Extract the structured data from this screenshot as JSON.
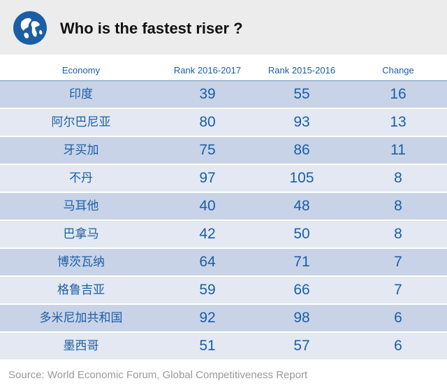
{
  "title": "Who is the fastest riser ?",
  "icon": "globe-icon",
  "colors": {
    "header_bg": "#ececec",
    "accent": "#1b5ea6",
    "row_dark": "#c9d3e7",
    "row_light": "#e3e8f2",
    "source_text": "#9a9a9a"
  },
  "source": "Source: World Economic Forum, Global Competitiveness Report",
  "chart_data": {
    "type": "table",
    "title": "Who is the fastest riser ?",
    "columns": [
      "Economy",
      "Rank 2016-2017",
      "Rank 2015-2016",
      "Change"
    ],
    "rows": [
      [
        "印度",
        "39",
        "55",
        "16"
      ],
      [
        "阿尔巴尼亚",
        "80",
        "93",
        "13"
      ],
      [
        "牙买加",
        "75",
        "86",
        "11"
      ],
      [
        "不丹",
        "97",
        "105",
        "8"
      ],
      [
        "马耳他",
        "40",
        "48",
        "8"
      ],
      [
        "巴拿马",
        "42",
        "50",
        "8"
      ],
      [
        "博茨瓦纳",
        "64",
        "71",
        "7"
      ],
      [
        "格鲁吉亚",
        "59",
        "66",
        "7"
      ],
      [
        "多米尼加共和国",
        "92",
        "98",
        "6"
      ],
      [
        "墨西哥",
        "51",
        "57",
        "6"
      ]
    ]
  }
}
